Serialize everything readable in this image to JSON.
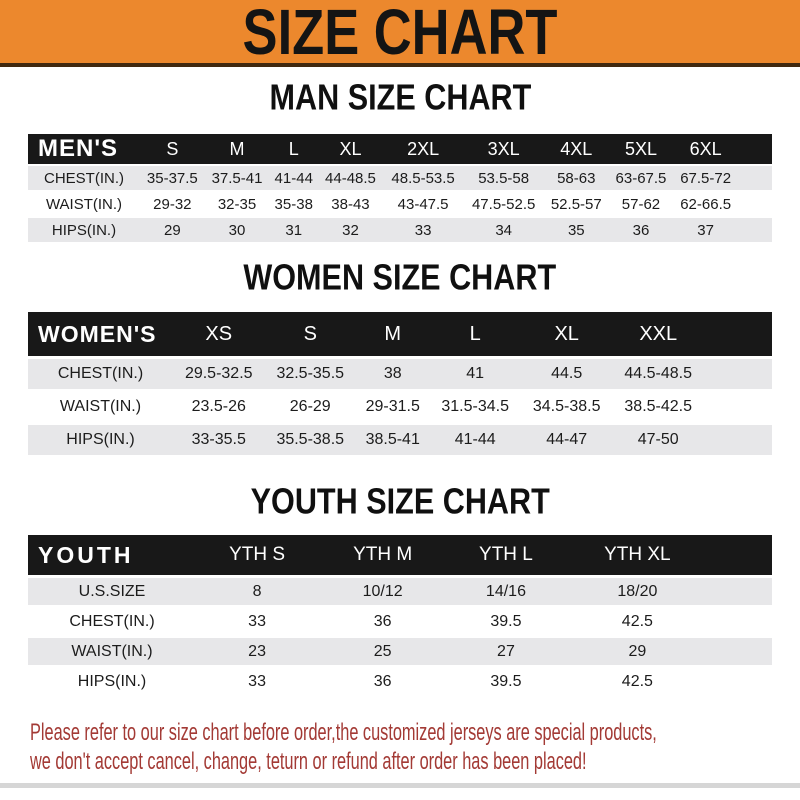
{
  "banner": {
    "title": "SIZE CHART"
  },
  "colors": {
    "banner_bg": "#EC882D",
    "banner_edge": "#40280F",
    "bar_bg": "#181818",
    "row_gray": "#E7E7E9",
    "footer_red": "#A33A35"
  },
  "sections": [
    {
      "heading": "MAN SIZE CHART",
      "table": {
        "label": "MEN'S",
        "columns": [
          "S",
          "M",
          "L",
          "XL",
          "2XL",
          "3XL",
          "4XL",
          "5XL",
          "6XL"
        ],
        "rows": [
          {
            "label": "CHEST(IN.)",
            "values": [
              "35-37.5",
              "37.5-41",
              "41-44",
              "44-48.5",
              "48.5-53.5",
              "53.5-58",
              "58-63",
              "63-67.5",
              "67.5-72"
            ]
          },
          {
            "label": "WAIST(IN.)",
            "values": [
              "29-32",
              "32-35",
              "35-38",
              "38-43",
              "43-47.5",
              "47.5-52.5",
              "52.5-57",
              "57-62",
              "62-66.5"
            ]
          },
          {
            "label": "HIPS(IN.)",
            "values": [
              "29",
              "30",
              "31",
              "32",
              "33",
              "34",
              "35",
              "36",
              "37"
            ]
          }
        ]
      }
    },
    {
      "heading": "WOMEN SIZE CHART",
      "table": {
        "label": "WOMEN'S",
        "columns": [
          "XS",
          "S",
          "M",
          "L",
          "XL",
          "XXL"
        ],
        "rows": [
          {
            "label": "CHEST(IN.)",
            "values": [
              "29.5-32.5",
              "32.5-35.5",
              "38",
              "41",
              "44.5",
              "44.5-48.5"
            ]
          },
          {
            "label": "WAIST(IN.)",
            "values": [
              "23.5-26",
              "26-29",
              "29-31.5",
              "31.5-34.5",
              "34.5-38.5",
              "38.5-42.5"
            ]
          },
          {
            "label": "HIPS(IN.)",
            "values": [
              "33-35.5",
              "35.5-38.5",
              "38.5-41",
              "41-44",
              "44-47",
              "47-50"
            ]
          }
        ]
      }
    },
    {
      "heading": "YOUTH SIZE CHART",
      "table": {
        "label": "YOUTH",
        "columns": [
          "YTH S",
          "YTH M",
          "YTH L",
          "YTH XL"
        ],
        "rows": [
          {
            "label": "U.S.SIZE",
            "values": [
              "8",
              "10/12",
              "14/16",
              "18/20"
            ]
          },
          {
            "label": "CHEST(IN.)",
            "values": [
              "33",
              "36",
              "39.5",
              "42.5"
            ]
          },
          {
            "label": "WAIST(IN.)",
            "values": [
              "23",
              "25",
              "27",
              "29"
            ]
          },
          {
            "label": "HIPS(IN.)",
            "values": [
              "33",
              "36",
              "39.5",
              "42.5"
            ]
          }
        ]
      }
    }
  ],
  "footer": {
    "line1": "Please refer to our size chart before order,the customized jerseys are special products,",
    "line2": "we don't accept cancel, change, teturn or refund after order has been placed!"
  }
}
